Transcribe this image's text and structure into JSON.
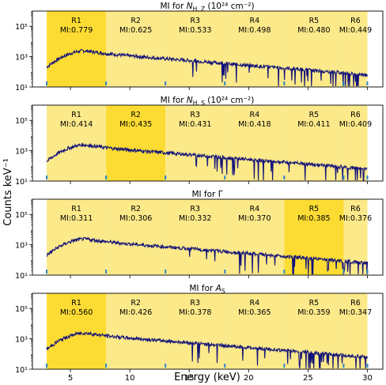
{
  "figure": {
    "xlabel": "Energy (keV)",
    "ylabel": "Counts keV⁻¹",
    "xticks": [
      "5",
      "10",
      "15",
      "20",
      "25",
      "30"
    ],
    "yticks": [
      "10¹",
      "10³",
      "10⁵"
    ]
  },
  "colors": {
    "band_light": "#fce98a",
    "band_dark": "#fcdc33",
    "spectrum": "#12127a",
    "tick_marker": "#2a86c8"
  },
  "chart_data": [
    {
      "type": "line",
      "title": "MI for N_H,Z (10²⁴ cm⁻²)",
      "title_main": "MI for ",
      "title_sym": "N",
      "title_sub": "H, Z",
      "title_unit": " (10²⁴ cm⁻²)",
      "xlim": [
        1.8,
        31.3
      ],
      "ylim_log10": [
        1,
        6
      ],
      "regions": [
        {
          "label": "R1",
          "mi": "MI:0.779",
          "range": [
            3,
            8
          ],
          "value": 0.779
        },
        {
          "label": "R2",
          "mi": "MI:0.625",
          "range": [
            8,
            13
          ],
          "value": 0.625
        },
        {
          "label": "R3",
          "mi": "MI:0.533",
          "range": [
            13,
            18
          ],
          "value": 0.533
        },
        {
          "label": "R4",
          "mi": "MI:0.498",
          "range": [
            18,
            23
          ],
          "value": 0.498
        },
        {
          "label": "R5",
          "mi": "MI:0.480",
          "range": [
            23,
            28
          ],
          "value": 0.48
        },
        {
          "label": "R6",
          "mi": "MI:0.449",
          "range": [
            28,
            30
          ],
          "value": 0.449
        }
      ],
      "highlight_region": "R1"
    },
    {
      "type": "line",
      "title": "MI for N_H,S (10²⁴ cm⁻²)",
      "title_main": "MI for ",
      "title_sym": "N",
      "title_sub": "H, S",
      "title_unit": " (10²⁴ cm⁻²)",
      "xlim": [
        1.8,
        31.3
      ],
      "ylim_log10": [
        1,
        6
      ],
      "regions": [
        {
          "label": "R1",
          "mi": "MI:0.414",
          "range": [
            3,
            8
          ],
          "value": 0.414
        },
        {
          "label": "R2",
          "mi": "MI:0.435",
          "range": [
            8,
            13
          ],
          "value": 0.435
        },
        {
          "label": "R3",
          "mi": "MI:0.431",
          "range": [
            13,
            18
          ],
          "value": 0.431
        },
        {
          "label": "R4",
          "mi": "MI:0.418",
          "range": [
            18,
            23
          ],
          "value": 0.418
        },
        {
          "label": "R5",
          "mi": "MI:0.411",
          "range": [
            23,
            28
          ],
          "value": 0.411
        },
        {
          "label": "R6",
          "mi": "MI:0.409",
          "range": [
            28,
            30
          ],
          "value": 0.409
        }
      ],
      "highlight_region": "R2"
    },
    {
      "type": "line",
      "title": "MI for Γ",
      "title_main": "MI for Γ",
      "title_sym": "",
      "title_sub": "",
      "title_unit": "",
      "xlim": [
        1.8,
        31.3
      ],
      "ylim_log10": [
        1,
        6
      ],
      "regions": [
        {
          "label": "R1",
          "mi": "MI:0.311",
          "range": [
            3,
            8
          ],
          "value": 0.311
        },
        {
          "label": "R2",
          "mi": "MI:0.306",
          "range": [
            8,
            13
          ],
          "value": 0.306
        },
        {
          "label": "R3",
          "mi": "MI:0.332",
          "range": [
            13,
            18
          ],
          "value": 0.332
        },
        {
          "label": "R4",
          "mi": "MI:0.370",
          "range": [
            18,
            23
          ],
          "value": 0.37
        },
        {
          "label": "R5",
          "mi": "MI:0.385",
          "range": [
            23,
            28
          ],
          "value": 0.385
        },
        {
          "label": "R6",
          "mi": "MI:0.376",
          "range": [
            28,
            30
          ],
          "value": 0.376
        }
      ],
      "highlight_region": "R5"
    },
    {
      "type": "line",
      "title": "MI for A_S",
      "title_main": "MI for ",
      "title_sym": "A",
      "title_sub": "S",
      "title_unit": "",
      "xlim": [
        1.8,
        31.3
      ],
      "ylim_log10": [
        1,
        6
      ],
      "regions": [
        {
          "label": "R1",
          "mi": "MI:0.560",
          "range": [
            3,
            8
          ],
          "value": 0.56
        },
        {
          "label": "R2",
          "mi": "MI:0.426",
          "range": [
            8,
            13
          ],
          "value": 0.426
        },
        {
          "label": "R3",
          "mi": "MI:0.378",
          "range": [
            13,
            18
          ],
          "value": 0.378
        },
        {
          "label": "R4",
          "mi": "MI:0.365",
          "range": [
            18,
            23
          ],
          "value": 0.365
        },
        {
          "label": "R5",
          "mi": "MI:0.359",
          "range": [
            23,
            28
          ],
          "value": 0.359
        },
        {
          "label": "R6",
          "mi": "MI:0.347",
          "range": [
            28,
            30
          ],
          "value": 0.347
        }
      ],
      "highlight_region": "R1"
    }
  ],
  "spectrum": {
    "x_keV": [
      3.0,
      3.5,
      4.0,
      4.5,
      5.0,
      5.5,
      6.0,
      6.5,
      7.0,
      8.0,
      9.0,
      10.0,
      12.0,
      14.0,
      16.0,
      18.0,
      20.0,
      22.0,
      24.0,
      26.0,
      28.0,
      30.0
    ],
    "log10_counts": [
      2.3,
      2.6,
      2.85,
      3.05,
      3.2,
      3.32,
      3.38,
      3.36,
      3.3,
      3.2,
      3.12,
      3.05,
      2.92,
      2.8,
      2.68,
      2.55,
      2.42,
      2.3,
      2.18,
      2.05,
      1.92,
      1.8
    ]
  }
}
